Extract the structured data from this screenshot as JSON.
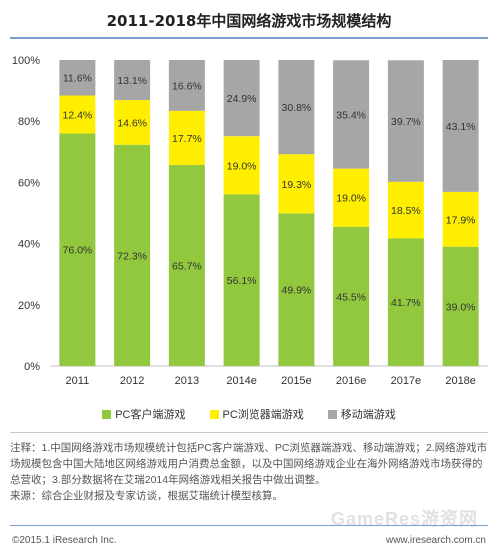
{
  "title": "2011-2018年中国网络游戏市场规模结构",
  "chart_data": {
    "type": "bar",
    "stacked": true,
    "categories": [
      "2011",
      "2012",
      "2013",
      "2014e",
      "2015e",
      "2016e",
      "2017e",
      "2018e"
    ],
    "series": [
      {
        "name": "PC客户端游戏",
        "values": [
          76.0,
          72.3,
          65.7,
          56.1,
          49.9,
          45.5,
          41.7,
          39.0
        ],
        "labels": [
          "76.0%",
          "72.3%",
          "65.7%",
          "56.1%",
          "49.9%",
          "45.5%",
          "41.7%",
          "39.0%"
        ],
        "color": "#92c83e"
      },
      {
        "name": "PC浏览器端游戏",
        "values": [
          12.4,
          14.6,
          17.7,
          19.0,
          19.3,
          19.0,
          18.5,
          17.9
        ],
        "labels": [
          "12.4%",
          "14.6%",
          "17.7%",
          "19.0%",
          "19.3%",
          "19.0%",
          "18.5%",
          "17.9%"
        ],
        "color": "#ffee00"
      },
      {
        "name": "移动端游戏",
        "values": [
          11.6,
          13.1,
          16.6,
          24.9,
          30.8,
          35.4,
          39.7,
          43.1
        ],
        "labels": [
          "11.6%",
          "13.1%",
          "16.6%",
          "24.9%",
          "30.8%",
          "35.4%",
          "39.7%",
          "43.1%"
        ],
        "color": "#a6a6a6"
      }
    ],
    "ylim": [
      0,
      100
    ],
    "yticks": [
      0,
      20,
      40,
      60,
      80,
      100
    ],
    "ytick_labels": [
      "0%",
      "20%",
      "40%",
      "60%",
      "80%",
      "100%"
    ],
    "grid": false,
    "legend_position": "bottom"
  },
  "notes": {
    "line1": "注释：1.中国网络游戏市场规模统计包括PC客户端游戏、PC浏览器端游戏、移动端游戏；2.网络游戏市场规模包含中国大陆地区网络游戏用户消费总金额，以及中国网络游戏企业在海外网络游戏市场获得的总营收；3.部分数据将在艾瑞2014年网络游戏相关报告中做出调整。",
    "line2": "来源：综合企业财报及专家访谈，根据艾瑞统计模型核算。"
  },
  "footer": {
    "copyright": "©2015.1 iResearch Inc.",
    "website": "www.iresearch.com.cn",
    "watermark": "GameRes游资网"
  }
}
